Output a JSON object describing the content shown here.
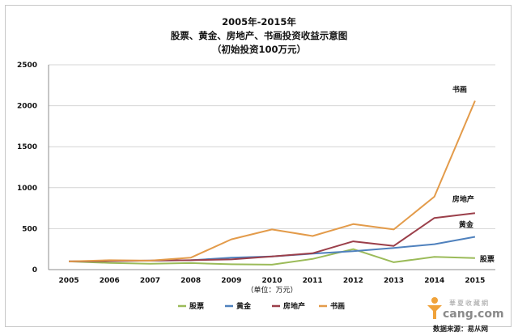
{
  "chart_data": {
    "type": "line",
    "title_lines": [
      "2005年-2015年",
      "股票、黄金、房地产、书画投资收益示意图",
      "（初始投资100万元）"
    ],
    "xlabel": "",
    "x_unit_note": "（单位：万元）",
    "ylabel": "",
    "categories": [
      "2005",
      "2006",
      "2007",
      "2008",
      "2009",
      "2010",
      "2011",
      "2012",
      "2013",
      "2014",
      "2015"
    ],
    "yticks": [
      0,
      500,
      1000,
      1500,
      2000,
      2500
    ],
    "ylim": [
      0,
      2500
    ],
    "grid": true,
    "legend_position": "bottom",
    "series": [
      {
        "name": "股票",
        "color": "#9bbb59",
        "end_label": "股票",
        "values": [
          100,
          82,
          72,
          80,
          65,
          60,
          130,
          250,
          90,
          155,
          140
        ]
      },
      {
        "name": "黄金",
        "color": "#4f81bd",
        "end_label": "黄金",
        "values": [
          100,
          105,
          110,
          115,
          145,
          160,
          195,
          225,
          265,
          310,
          400
        ]
      },
      {
        "name": "房地产",
        "color": "#9b3f4a",
        "end_label": "房地产",
        "values": [
          100,
          105,
          110,
          115,
          125,
          160,
          200,
          345,
          290,
          630,
          690
        ]
      },
      {
        "name": "书画",
        "color": "#e39b4a",
        "end_label": "书画",
        "values": [
          100,
          115,
          110,
          145,
          370,
          490,
          410,
          555,
          490,
          890,
          2060
        ]
      }
    ]
  },
  "watermark": {
    "brand": "華夏收藏網",
    "site": "cang.com",
    "source": "数据来源：易从网"
  }
}
